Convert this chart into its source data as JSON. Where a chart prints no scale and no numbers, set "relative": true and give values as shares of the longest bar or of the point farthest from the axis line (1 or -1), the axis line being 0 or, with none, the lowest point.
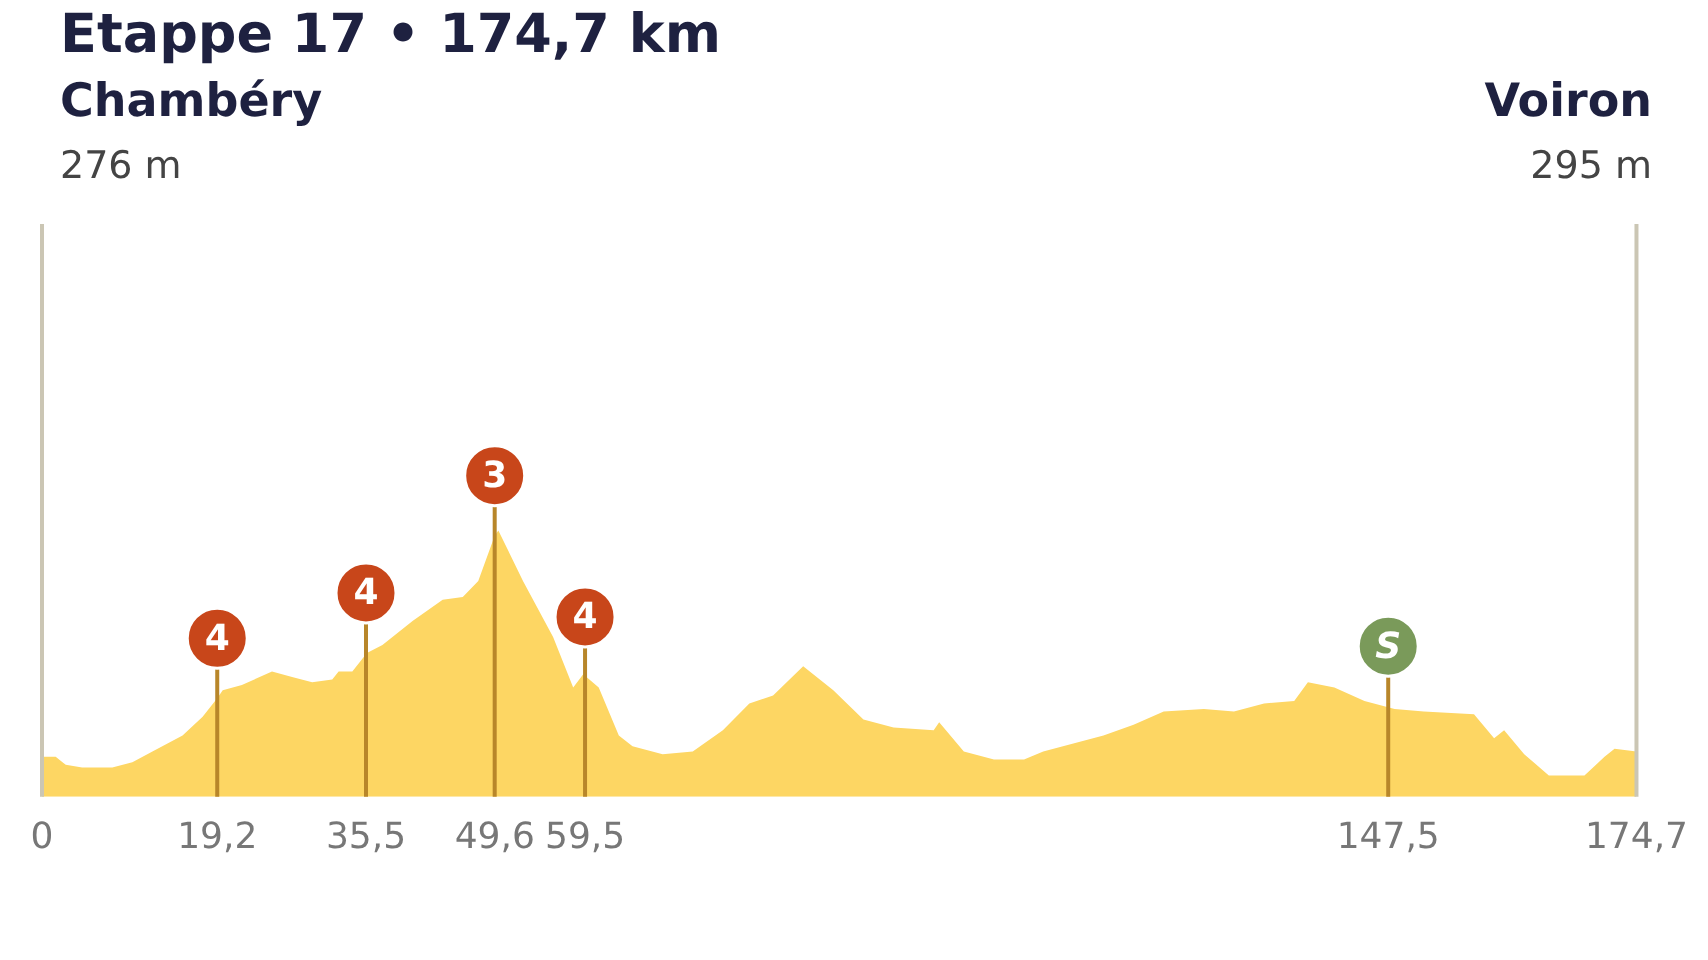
{
  "chart_data": {
    "type": "area",
    "title": "Etappe 17 • 174,7 km",
    "annotations": [
      "Chambéry",
      "276 m",
      "Voiron",
      "295 m",
      {
        "text": "4",
        "x": 19.2,
        "y": 0.37
      },
      {
        "text": "4",
        "x": 35.5,
        "y": 0.54
      },
      {
        "text": "3",
        "x": 49.6,
        "y": 0.98
      },
      {
        "text": "4",
        "x": 59.5,
        "y": 0.45
      },
      {
        "text": "S",
        "x": 147.5,
        "y": 0.34
      }
    ],
    "relative": true,
    "x": [
      0,
      1.5,
      2.6,
      4.4,
      7.7,
      9.9,
      12.1,
      15.4,
      17.6,
      19.2,
      19.8,
      21.9,
      25.2,
      27.4,
      29.6,
      31.8,
      32.5,
      34.0,
      35.6,
      37.3,
      40.6,
      43.9,
      46.1,
      47.8,
      49.6,
      50.0,
      52.7,
      56.0,
      58.2,
      59.3,
      61.0,
      63.2,
      64.7,
      68.0,
      71.3,
      74.6,
      77.5,
      80.1,
      83.4,
      86.7,
      90.0,
      93.3,
      97.7,
      98.3,
      101.0,
      104.3,
      107.6,
      109.7,
      113.0,
      116.3,
      119.6,
      122.9,
      127.3,
      130.6,
      133.9,
      137.2,
      138.7,
      141.6,
      144.9,
      148.2,
      151.4,
      156.9,
      159.1,
      160.2,
      162.4,
      165.1,
      169.0,
      171.2,
      172.3,
      174.7
    ],
    "series": [
      {
        "color": "#fdd663",
        "values": [
          0.15,
          0.15,
          0.12,
          0.11,
          0.11,
          0.13,
          0.17,
          0.23,
          0.3,
          0.37,
          0.4,
          0.42,
          0.47,
          0.45,
          0.43,
          0.44,
          0.47,
          0.47,
          0.54,
          0.57,
          0.66,
          0.74,
          0.75,
          0.81,
          0.98,
          1,
          0.81,
          0.6,
          0.41,
          0.46,
          0.41,
          0.23,
          0.19,
          0.16,
          0.17,
          0.25,
          0.35,
          0.38,
          0.49,
          0.4,
          0.29,
          0.26,
          0.25,
          0.28,
          0.17,
          0.14,
          0.14,
          0.17,
          0.2,
          0.23,
          0.27,
          0.32,
          0.33,
          0.32,
          0.35,
          0.36,
          0.43,
          0.41,
          0.36,
          0.33,
          0.32,
          0.31,
          0.22,
          0.25,
          0.16,
          0.08,
          0.08,
          0.15,
          0.18,
          0.17
        ]
      }
    ],
    "xlim": [
      0,
      174.7
    ],
    "xticks": [
      0,
      {
        "value": 19.2,
        "label": "19,2"
      },
      {
        "value": 35.5,
        "label": "35,5"
      },
      {
        "value": 49.6,
        "label": "49,6"
      },
      {
        "value": 59.5,
        "label": "59,5"
      },
      {
        "value": 147.5,
        "label": "147,5"
      },
      {
        "value": 174.7,
        "label": "174,7"
      }
    ],
    "ref_lines": [
      {
        "axis": "x",
        "value": 19.2,
        "color": "#b8862a"
      },
      {
        "axis": "x",
        "value": 35.5,
        "color": "#b8862a"
      },
      {
        "axis": "x",
        "value": 49.6,
        "color": "#b8862a"
      },
      {
        "axis": "x",
        "value": 59.5,
        "color": "#b8862a"
      },
      {
        "axis": "x",
        "value": 147.5,
        "color": "#b8862a"
      }
    ]
  }
}
